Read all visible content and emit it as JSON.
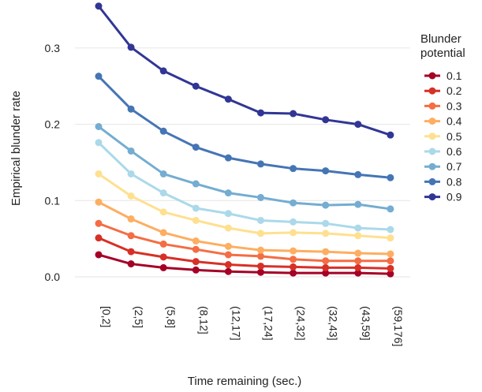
{
  "chart_data": {
    "type": "line",
    "title": "",
    "xlabel": "Time remaining (sec.)",
    "ylabel": "Empirical blunder rate",
    "categories": [
      "[0,2]",
      "(2,5]",
      "(5,8]",
      "(8,12]",
      "(12,17]",
      "(17,24]",
      "(24,32]",
      "(32,43]",
      "(43,59]",
      "(59,176]"
    ],
    "ylim": [
      -0.01,
      0.36
    ],
    "yticks": [
      0.0,
      0.1,
      0.2,
      0.3
    ],
    "ytick_labels": [
      "0.0",
      "0.1",
      "0.2",
      "0.3"
    ],
    "grid": "horizontal",
    "legend": {
      "title_lines": [
        "Blunder",
        "potential"
      ],
      "placement": "right"
    },
    "series": [
      {
        "name": "0.1",
        "color": "#a50026",
        "values": [
          0.029,
          0.017,
          0.012,
          0.009,
          0.007,
          0.006,
          0.005,
          0.005,
          0.005,
          0.004
        ]
      },
      {
        "name": "0.2",
        "color": "#d73027",
        "values": [
          0.051,
          0.033,
          0.026,
          0.02,
          0.016,
          0.014,
          0.013,
          0.012,
          0.012,
          0.011
        ]
      },
      {
        "name": "0.3",
        "color": "#f46d43",
        "values": [
          0.07,
          0.054,
          0.043,
          0.036,
          0.029,
          0.027,
          0.023,
          0.021,
          0.021,
          0.021
        ]
      },
      {
        "name": "0.4",
        "color": "#fdae61",
        "values": [
          0.098,
          0.076,
          0.058,
          0.047,
          0.04,
          0.035,
          0.034,
          0.033,
          0.031,
          0.03
        ]
      },
      {
        "name": "0.5",
        "color": "#fee090",
        "values": [
          0.135,
          0.106,
          0.085,
          0.074,
          0.064,
          0.057,
          0.058,
          0.057,
          0.054,
          0.051
        ]
      },
      {
        "name": "0.6",
        "color": "#abd9e9",
        "values": [
          0.176,
          0.135,
          0.11,
          0.09,
          0.083,
          0.074,
          0.072,
          0.07,
          0.064,
          0.062
        ]
      },
      {
        "name": "0.7",
        "color": "#74add1",
        "values": [
          0.197,
          0.165,
          0.135,
          0.122,
          0.11,
          0.104,
          0.097,
          0.094,
          0.095,
          0.089
        ]
      },
      {
        "name": "0.8",
        "color": "#4575b4",
        "values": [
          0.263,
          0.22,
          0.191,
          0.17,
          0.156,
          0.148,
          0.142,
          0.139,
          0.134,
          0.13
        ]
      },
      {
        "name": "0.9",
        "color": "#313695",
        "values": [
          0.355,
          0.301,
          0.27,
          0.25,
          0.233,
          0.215,
          0.214,
          0.206,
          0.2,
          0.186
        ]
      }
    ]
  }
}
